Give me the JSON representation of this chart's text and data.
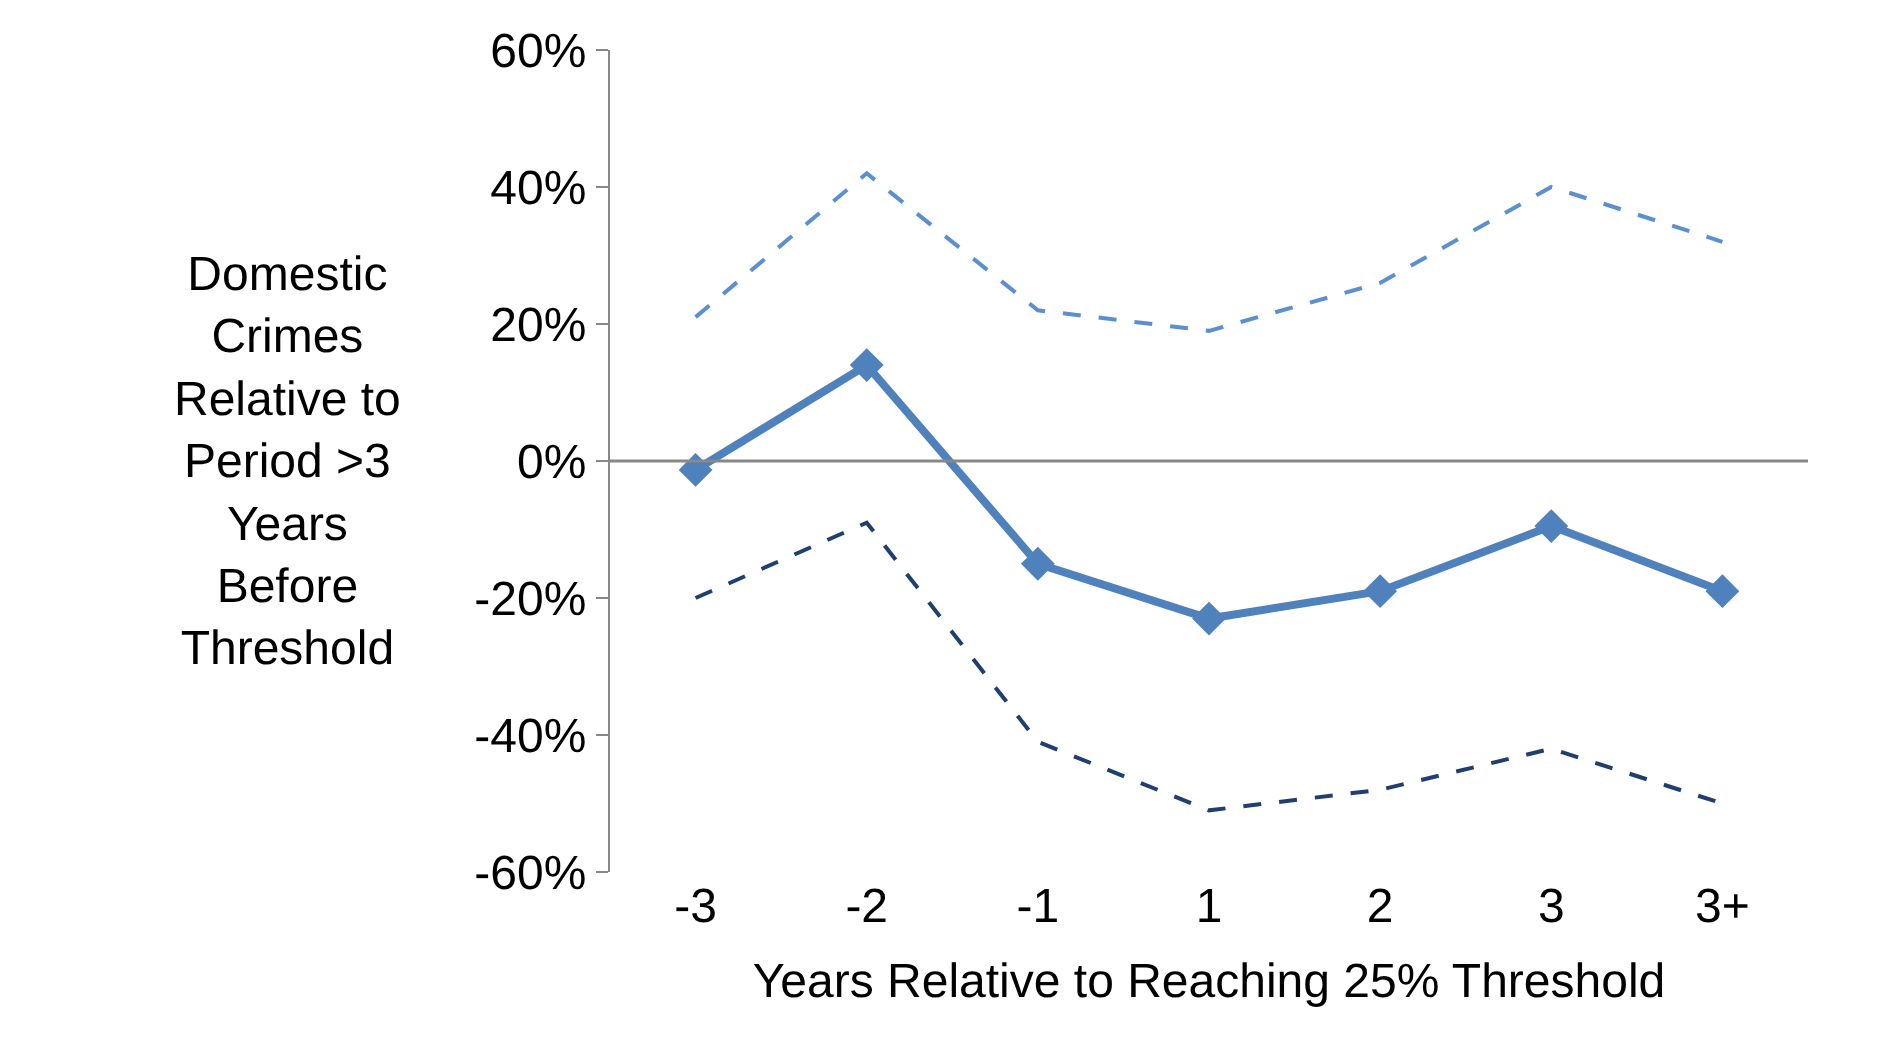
{
  "chart_data": {
    "type": "line",
    "xlabel": "Years Relative to Reaching 25% Threshold",
    "ylabel": "Domestic Crimes Relative to Period >3 Years Before Threshold",
    "categories": [
      "-3",
      "-2",
      "-1",
      "1",
      "2",
      "3",
      "3+"
    ],
    "series": [
      {
        "color": "#5b8fd0",
        "line_style": "dashed",
        "marker": "none",
        "values": [
          21,
          42,
          22,
          19,
          26,
          40,
          32
        ]
      },
      {
        "color": "#1f3f70",
        "line_style": "dashed",
        "marker": "none",
        "values": [
          -20,
          -9,
          -41,
          -51,
          -48,
          -42,
          -50
        ]
      },
      {
        "color": "#4f81bd",
        "line_style": "solid",
        "marker": "diamond",
        "values": [
          -1.3,
          14,
          -15,
          -23,
          -19,
          -9.5,
          -19
        ]
      }
    ],
    "ylim": [
      -60,
      60
    ],
    "yticks": [
      {
        "value": -60,
        "label": "-60%"
      },
      {
        "value": -40,
        "label": "-40%"
      },
      {
        "value": -20,
        "label": "-20%"
      },
      {
        "value": 0,
        "label": "0%"
      },
      {
        "value": 20,
        "label": "20%"
      },
      {
        "value": 40,
        "label": "40%"
      },
      {
        "value": 60,
        "label": "60%"
      }
    ],
    "ref_lines": [
      {
        "axis": "y",
        "value": 0,
        "color": "#888888"
      }
    ]
  }
}
